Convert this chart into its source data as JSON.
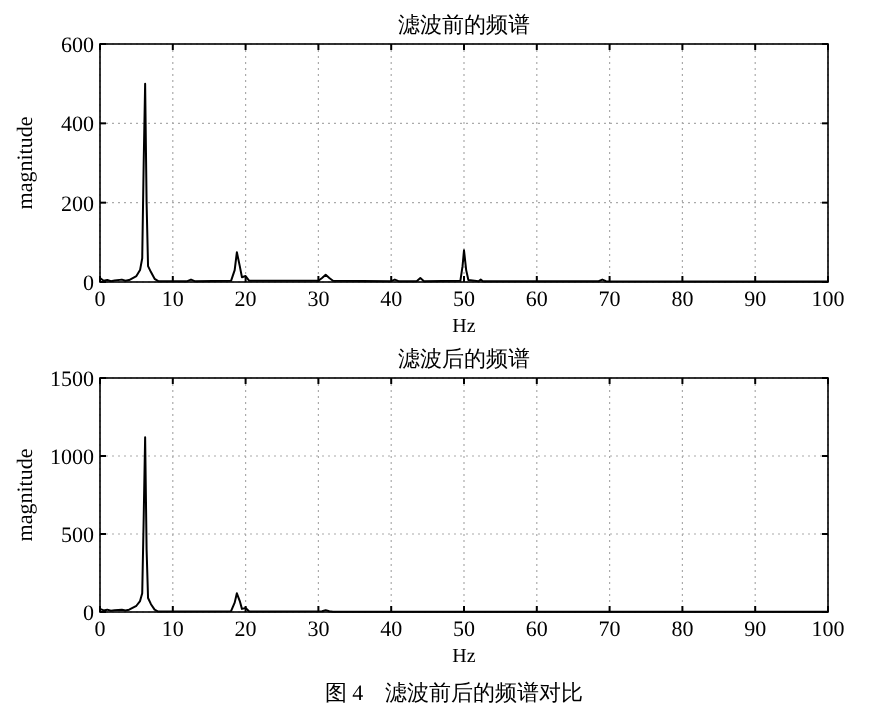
{
  "chart_data": [
    {
      "type": "line",
      "title": "滤波前的频谱",
      "xlabel": "Hz",
      "ylabel": "magnitude",
      "xlim": [
        0,
        100
      ],
      "xticks": [
        0,
        10,
        20,
        30,
        40,
        50,
        60,
        70,
        80,
        90,
        100
      ],
      "ylim": [
        0,
        600
      ],
      "yticks": [
        0,
        200,
        400,
        600
      ],
      "grid": true,
      "series": [
        {
          "color": "#000000",
          "x": [
            0,
            0.5,
            1,
            1.5,
            2,
            3,
            3.5,
            4,
            5,
            5.5,
            5.8,
            6,
            6.2,
            6.4,
            6.6,
            7,
            7.5,
            8,
            12,
            12.5,
            13,
            18,
            18.5,
            18.8,
            19.2,
            19.5,
            20,
            20.5,
            30,
            30.5,
            31,
            31.5,
            32,
            40,
            40.5,
            41,
            43.5,
            44,
            44.5,
            49.5,
            49.8,
            50,
            50.3,
            50.6,
            52,
            52.3,
            52.6,
            68.5,
            69,
            69.5,
            100
          ],
          "values": [
            10,
            3,
            5,
            2,
            4,
            6,
            3,
            5,
            15,
            30,
            60,
            300,
            500,
            200,
            40,
            25,
            8,
            2,
            2,
            6,
            2,
            3,
            30,
            75,
            40,
            12,
            15,
            3,
            3,
            10,
            18,
            10,
            3,
            2,
            6,
            2,
            2,
            10,
            2,
            3,
            40,
            80,
            30,
            5,
            2,
            6,
            2,
            2,
            6,
            2,
            1
          ]
        }
      ]
    },
    {
      "type": "line",
      "title": "滤波后的频谱",
      "xlabel": "Hz",
      "ylabel": "magnitude",
      "xlim": [
        0,
        100
      ],
      "xticks": [
        0,
        10,
        20,
        30,
        40,
        50,
        60,
        70,
        80,
        90,
        100
      ],
      "ylim": [
        0,
        1500
      ],
      "yticks": [
        0,
        500,
        1000,
        1500
      ],
      "grid": true,
      "annotations": [
        "图 4　滤波前后的频谱对比"
      ],
      "series": [
        {
          "color": "#000000",
          "x": [
            0,
            0.5,
            1,
            1.5,
            2,
            3,
            3.5,
            4,
            5,
            5.5,
            5.8,
            6,
            6.2,
            6.4,
            6.6,
            7,
            7.5,
            8,
            18,
            18.5,
            18.8,
            19.2,
            19.5,
            20,
            20.5,
            30.5,
            31,
            31.5,
            32,
            100
          ],
          "values": [
            20,
            10,
            15,
            8,
            12,
            15,
            10,
            15,
            40,
            70,
            120,
            600,
            1120,
            400,
            90,
            50,
            15,
            3,
            5,
            60,
            120,
            70,
            20,
            25,
            3,
            5,
            12,
            5,
            2,
            1
          ]
        }
      ]
    }
  ]
}
